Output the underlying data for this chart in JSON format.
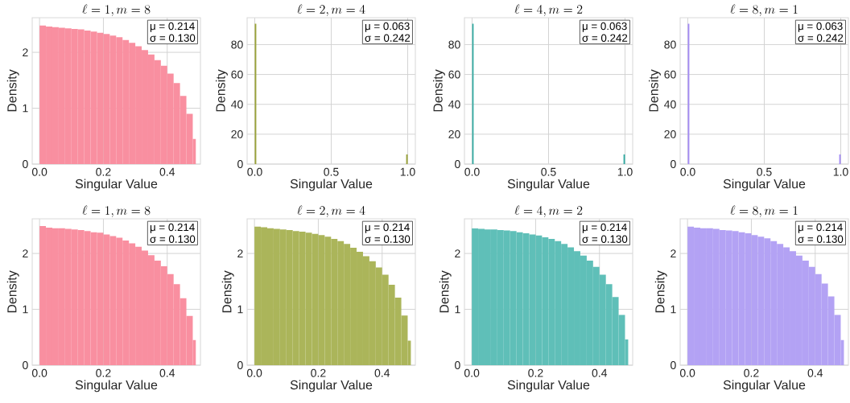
{
  "chart_data": [
    {
      "type": "histogram",
      "title": "\\ell=1, m=8",
      "xlabel": "Singular Value",
      "ylabel": "Density",
      "color": "#f98fa0",
      "grid": true,
      "annotations": [
        "μ = 0.214",
        "σ = 0.130"
      ],
      "xlim": [
        -0.023,
        0.504
      ],
      "ylim": [
        0,
        2.62
      ],
      "xticks": [
        {
          "value": 0,
          "label": "0.0"
        },
        {
          "value": 0.2,
          "label": "0.2"
        },
        {
          "value": 0.4,
          "label": "0.4"
        }
      ],
      "yticks": [
        0,
        1,
        2
      ],
      "bins": [
        0,
        0.02,
        0.04,
        0.06,
        0.08,
        0.1,
        0.12,
        0.14,
        0.16,
        0.18,
        0.2,
        0.22,
        0.24,
        0.26,
        0.28,
        0.3,
        0.32,
        0.34,
        0.36,
        0.38,
        0.4,
        0.42,
        0.44,
        0.46,
        0.48,
        0.49
      ],
      "values": [
        2.48,
        2.46,
        2.45,
        2.44,
        2.43,
        2.42,
        2.41,
        2.39,
        2.37,
        2.35,
        2.33,
        2.3,
        2.27,
        2.22,
        2.17,
        2.11,
        2.04,
        1.96,
        1.86,
        1.76,
        1.62,
        1.45,
        1.22,
        0.9,
        0.45
      ]
    },
    {
      "type": "histogram",
      "title": "\\ell=2, m=4",
      "xlabel": "Singular Value",
      "ylabel": "Density",
      "color": "#9aa33a",
      "grid": true,
      "annotations": [
        "μ = 0.063",
        "σ = 0.242"
      ],
      "xlim": [
        -0.05,
        1.05
      ],
      "ylim": [
        0,
        98
      ],
      "xticks": [
        {
          "value": 0,
          "label": "0.0"
        },
        {
          "value": 0.5,
          "label": "0.5"
        },
        {
          "value": 1,
          "label": "1.0"
        }
      ],
      "yticks": [
        0,
        20,
        40,
        60,
        80
      ],
      "bins": [
        0,
        0.01,
        0.99,
        1.0
      ],
      "values": [
        94,
        0,
        6.5
      ]
    },
    {
      "type": "histogram",
      "title": "\\ell=4, m=2",
      "xlabel": "Singular Value",
      "ylabel": "Density",
      "color": "#36ada4",
      "grid": true,
      "annotations": [
        "μ = 0.063",
        "σ = 0.242"
      ],
      "xlim": [
        -0.05,
        1.05
      ],
      "ylim": [
        0,
        98
      ],
      "xticks": [
        {
          "value": 0,
          "label": "0.0"
        },
        {
          "value": 0.5,
          "label": "0.5"
        },
        {
          "value": 1,
          "label": "1.0"
        }
      ],
      "yticks": [
        0,
        20,
        40,
        60,
        80
      ],
      "bins": [
        0,
        0.01,
        0.99,
        1.0
      ],
      "values": [
        94,
        0,
        6.5
      ]
    },
    {
      "type": "histogram",
      "title": "\\ell=8, m=1",
      "xlabel": "Singular Value",
      "ylabel": "Density",
      "color": "#a48cf4",
      "grid": true,
      "annotations": [
        "μ = 0.063",
        "σ = 0.242"
      ],
      "xlim": [
        -0.05,
        1.05
      ],
      "ylim": [
        0,
        98
      ],
      "xticks": [
        {
          "value": 0,
          "label": "0.0"
        },
        {
          "value": 0.5,
          "label": "0.5"
        },
        {
          "value": 1,
          "label": "1.0"
        }
      ],
      "yticks": [
        0,
        20,
        40,
        60,
        80
      ],
      "bins": [
        0,
        0.01,
        0.99,
        1.0
      ],
      "values": [
        94,
        0,
        6.5
      ]
    },
    {
      "type": "histogram",
      "title": "\\ell=1, m=8",
      "xlabel": "Singular Value",
      "ylabel": "Density",
      "color": "#f98fa0",
      "grid": true,
      "annotations": [
        "μ = 0.214",
        "σ = 0.130"
      ],
      "xlim": [
        -0.023,
        0.504
      ],
      "ylim": [
        0,
        2.62
      ],
      "xticks": [
        {
          "value": 0,
          "label": "0.0"
        },
        {
          "value": 0.2,
          "label": "0.2"
        },
        {
          "value": 0.4,
          "label": "0.4"
        }
      ],
      "yticks": [
        0,
        1,
        2
      ],
      "bins": [
        0,
        0.02,
        0.04,
        0.06,
        0.08,
        0.1,
        0.12,
        0.14,
        0.16,
        0.18,
        0.2,
        0.22,
        0.24,
        0.26,
        0.28,
        0.3,
        0.32,
        0.34,
        0.36,
        0.38,
        0.4,
        0.42,
        0.44,
        0.46,
        0.48,
        0.49
      ],
      "values": [
        2.49,
        2.46,
        2.45,
        2.45,
        2.44,
        2.43,
        2.42,
        2.4,
        2.38,
        2.37,
        2.34,
        2.31,
        2.28,
        2.23,
        2.18,
        2.12,
        2.05,
        1.97,
        1.87,
        1.77,
        1.63,
        1.45,
        1.2,
        0.88,
        0.45
      ]
    },
    {
      "type": "histogram",
      "title": "\\ell=2, m=4",
      "xlabel": "Singular Value",
      "ylabel": "Density",
      "color": "#abb55a",
      "grid": true,
      "annotations": [
        "μ = 0.214",
        "σ = 0.130"
      ],
      "xlim": [
        -0.023,
        0.504
      ],
      "ylim": [
        0,
        2.62
      ],
      "xticks": [
        {
          "value": 0,
          "label": "0.0"
        },
        {
          "value": 0.2,
          "label": "0.2"
        },
        {
          "value": 0.4,
          "label": "0.4"
        }
      ],
      "yticks": [
        0,
        1,
        2
      ],
      "bins": [
        0,
        0.02,
        0.04,
        0.06,
        0.08,
        0.1,
        0.12,
        0.14,
        0.16,
        0.18,
        0.2,
        0.22,
        0.24,
        0.26,
        0.28,
        0.3,
        0.32,
        0.34,
        0.36,
        0.38,
        0.4,
        0.42,
        0.44,
        0.46,
        0.48,
        0.49
      ],
      "values": [
        2.48,
        2.47,
        2.45,
        2.44,
        2.43,
        2.42,
        2.4,
        2.39,
        2.37,
        2.35,
        2.33,
        2.3,
        2.26,
        2.22,
        2.17,
        2.1,
        2.03,
        1.95,
        1.86,
        1.75,
        1.62,
        1.44,
        1.21,
        0.89,
        0.44
      ]
    },
    {
      "type": "histogram",
      "title": "\\ell=4, m=2",
      "xlabel": "Singular Value",
      "ylabel": "Density",
      "color": "#5fbfb8",
      "grid": true,
      "annotations": [
        "μ = 0.214",
        "σ = 0.130"
      ],
      "xlim": [
        -0.023,
        0.504
      ],
      "ylim": [
        0,
        2.62
      ],
      "xticks": [
        {
          "value": 0,
          "label": "0.0"
        },
        {
          "value": 0.2,
          "label": "0.2"
        },
        {
          "value": 0.4,
          "label": "0.4"
        }
      ],
      "yticks": [
        0,
        1,
        2
      ],
      "bins": [
        0,
        0.02,
        0.04,
        0.06,
        0.08,
        0.1,
        0.12,
        0.14,
        0.16,
        0.18,
        0.2,
        0.22,
        0.24,
        0.26,
        0.28,
        0.3,
        0.32,
        0.34,
        0.36,
        0.38,
        0.4,
        0.42,
        0.44,
        0.46,
        0.48,
        0.49
      ],
      "values": [
        2.45,
        2.44,
        2.43,
        2.43,
        2.42,
        2.41,
        2.4,
        2.38,
        2.36,
        2.34,
        2.32,
        2.29,
        2.26,
        2.22,
        2.17,
        2.11,
        2.04,
        1.96,
        1.87,
        1.76,
        1.62,
        1.45,
        1.22,
        0.9,
        0.46
      ]
    },
    {
      "type": "histogram",
      "title": "\\ell=8, m=1",
      "xlabel": "Singular Value",
      "ylabel": "Density",
      "color": "#b3a2f4",
      "grid": true,
      "annotations": [
        "μ = 0.214",
        "σ = 0.130"
      ],
      "xlim": [
        -0.023,
        0.504
      ],
      "ylim": [
        0,
        2.62
      ],
      "xticks": [
        {
          "value": 0,
          "label": "0.0"
        },
        {
          "value": 0.2,
          "label": "0.2"
        },
        {
          "value": 0.4,
          "label": "0.4"
        }
      ],
      "yticks": [
        0,
        1,
        2
      ],
      "bins": [
        0,
        0.02,
        0.04,
        0.06,
        0.08,
        0.1,
        0.12,
        0.14,
        0.16,
        0.18,
        0.2,
        0.22,
        0.24,
        0.26,
        0.28,
        0.3,
        0.32,
        0.34,
        0.36,
        0.38,
        0.4,
        0.42,
        0.44,
        0.46,
        0.48,
        0.49
      ],
      "values": [
        2.48,
        2.46,
        2.45,
        2.45,
        2.44,
        2.42,
        2.41,
        2.4,
        2.38,
        2.36,
        2.33,
        2.3,
        2.27,
        2.22,
        2.17,
        2.11,
        2.04,
        1.96,
        1.87,
        1.76,
        1.63,
        1.46,
        1.23,
        0.9,
        0.45
      ]
    }
  ]
}
